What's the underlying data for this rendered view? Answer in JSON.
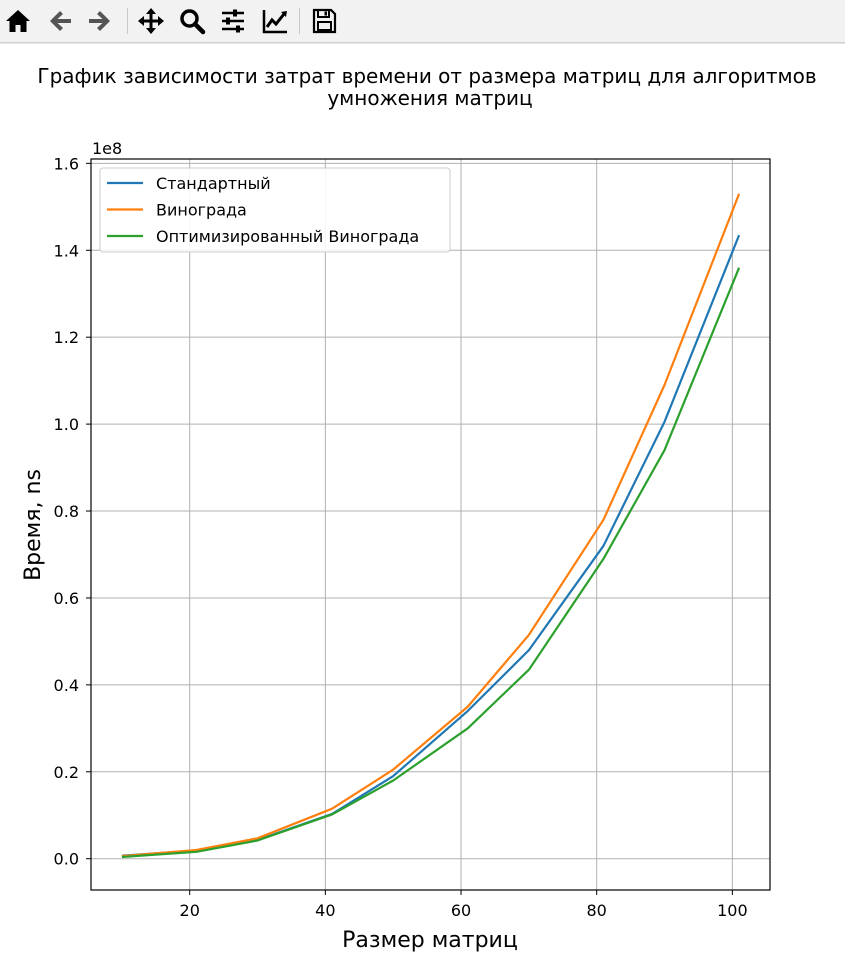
{
  "toolbar": {
    "buttons": [
      {
        "name": "home-icon"
      },
      {
        "name": "back-arrow-icon"
      },
      {
        "name": "forward-arrow-icon"
      },
      {
        "name": "pan-move-icon"
      },
      {
        "name": "zoom-magnifier-icon"
      },
      {
        "name": "configure-subplots-icon"
      },
      {
        "name": "edit-axes-icon"
      },
      {
        "name": "save-floppy-icon"
      }
    ]
  },
  "chart_data": {
    "type": "line",
    "title_line1": "График зависимости затрат времени от размера матриц для алгоритмов",
    "title_line2": "умножения матриц",
    "xlabel": "Размер матриц",
    "ylabel": "Время, ns",
    "y_offset_label": "1e8",
    "xlim": [
      5.45,
      105.55
    ],
    "ylim": [
      -0.072,
      1.61
    ],
    "x_ticks": [
      20,
      40,
      60,
      80,
      100
    ],
    "y_ticks": [
      0.0,
      0.2,
      0.4,
      0.6,
      0.8,
      1.0,
      1.2,
      1.4,
      1.6
    ],
    "y_tick_labels": [
      "0.0",
      "0.2",
      "0.4",
      "0.6",
      "0.8",
      "1.0",
      "1.2",
      "1.4",
      "1.6"
    ],
    "grid": true,
    "legend_position": "top-left",
    "x": [
      10,
      21,
      30,
      41,
      50,
      61,
      70,
      81,
      90,
      101
    ],
    "series": [
      {
        "name": "Стандартный",
        "color": "#1f77b4",
        "values": [
          0.007,
          0.019,
          0.043,
          0.103,
          0.19,
          0.34,
          0.48,
          0.72,
          1.005,
          1.435
        ]
      },
      {
        "name": "Винограда",
        "color": "#ff7f0e",
        "values": [
          0.006,
          0.02,
          0.047,
          0.115,
          0.205,
          0.35,
          0.515,
          0.78,
          1.09,
          1.53
        ]
      },
      {
        "name": "Оптимизированный Винограда",
        "color": "#2ca02c",
        "values": [
          0.004,
          0.016,
          0.042,
          0.102,
          0.18,
          0.3,
          0.435,
          0.69,
          0.94,
          1.36
        ]
      }
    ]
  }
}
